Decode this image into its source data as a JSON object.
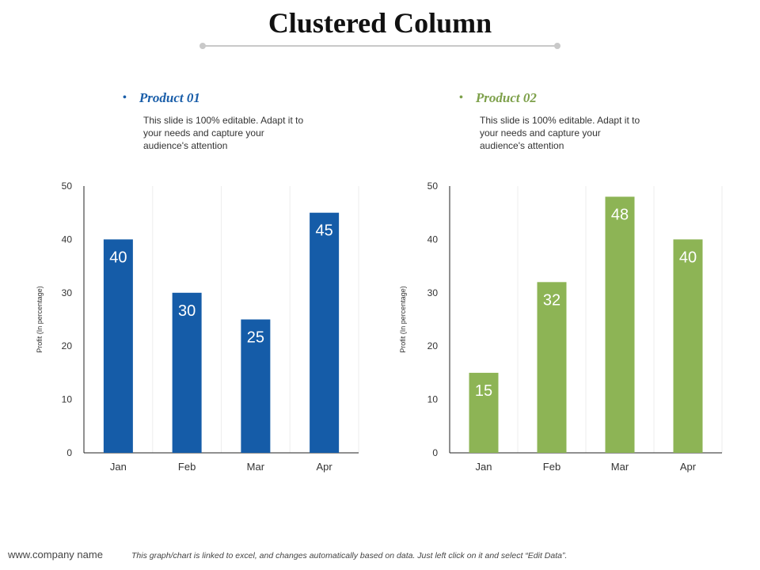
{
  "page": {
    "title": "Clustered Column",
    "footer_company": "www.company name",
    "footer_note": "This graph/chart is linked to excel, and changes automatically based on data. Just left click on it and select “Edit Data”."
  },
  "products": [
    {
      "name": "Product 01",
      "color": "#1a5ea9",
      "description": "This slide is 100% editable. Adapt it to your needs and capture your audience's attention"
    },
    {
      "name": "Product 02",
      "color": "#7da04a",
      "description": "This slide is 100% editable. Adapt it to your needs and capture your audience's attention"
    }
  ],
  "chart_data": [
    {
      "type": "bar",
      "title": "Product 01",
      "categories": [
        "Jan",
        "Feb",
        "Mar",
        "Apr"
      ],
      "values": [
        40,
        30,
        25,
        45
      ],
      "xlabel": "",
      "ylabel": "Profit  (In percentage)",
      "ylim": [
        0,
        50
      ],
      "yticks": [
        0,
        10,
        20,
        30,
        40,
        50
      ],
      "bar_color": "#155ca8",
      "data_labels": true,
      "grid": "vertical"
    },
    {
      "type": "bar",
      "title": "Product 02",
      "categories": [
        "Jan",
        "Feb",
        "Mar",
        "Apr"
      ],
      "values": [
        15,
        32,
        48,
        40
      ],
      "xlabel": "",
      "ylabel": "Profit  (In percentage)",
      "ylim": [
        0,
        50
      ],
      "yticks": [
        0,
        10,
        20,
        30,
        40,
        50
      ],
      "bar_color": "#8db455",
      "data_labels": true,
      "grid": "vertical"
    }
  ]
}
